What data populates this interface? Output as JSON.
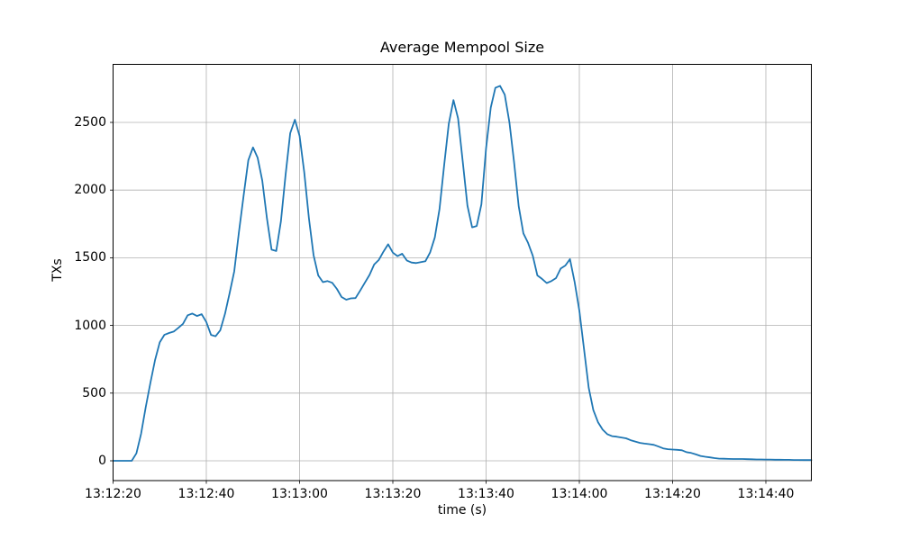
{
  "title": "Average Mempool Size",
  "chart_data": {
    "type": "line",
    "title": "Average Mempool Size",
    "xlabel": "time (s)",
    "ylabel": "TXs",
    "grid": true,
    "legend": "none",
    "line_color": "#1f77b4",
    "grid_color": "#b0b0b0",
    "spine_color": "#000000",
    "x_start_time": "13:12:20",
    "x_tick_interval_s": 20,
    "x_tick_labels": [
      "13:12:20",
      "13:12:40",
      "13:13:00",
      "13:13:20",
      "13:13:40",
      "13:14:00",
      "13:14:20",
      "13:14:40"
    ],
    "y_ticks": [
      0,
      500,
      1000,
      1500,
      2000,
      2500
    ],
    "ylim": [
      -146,
      2929
    ],
    "xlim_s": [
      0,
      149.8
    ],
    "x_unit": "seconds since 13:12:20",
    "series": [
      {
        "name": "average mempool size",
        "sample_interval_s": 1,
        "values": [
          0,
          0,
          0,
          0,
          0,
          55,
          200,
          395,
          575,
          745,
          875,
          930,
          944,
          955,
          982,
          1012,
          1075,
          1088,
          1070,
          1083,
          1025,
          930,
          920,
          965,
          1085,
          1240,
          1400,
          1690,
          1960,
          2220,
          2315,
          2240,
          2070,
          1790,
          1560,
          1550,
          1770,
          2115,
          2420,
          2520,
          2400,
          2130,
          1790,
          1520,
          1370,
          1320,
          1328,
          1315,
          1270,
          1210,
          1190,
          1200,
          1202,
          1258,
          1315,
          1373,
          1450,
          1485,
          1545,
          1600,
          1538,
          1512,
          1530,
          1480,
          1465,
          1461,
          1468,
          1475,
          1540,
          1650,
          1860,
          2180,
          2490,
          2665,
          2530,
          2210,
          1885,
          1725,
          1735,
          1895,
          2310,
          2610,
          2755,
          2770,
          2705,
          2500,
          2210,
          1880,
          1680,
          1610,
          1515,
          1370,
          1344,
          1313,
          1328,
          1350,
          1420,
          1443,
          1490,
          1320,
          1110,
          825,
          540,
          375,
          285,
          230,
          197,
          182,
          178,
          172,
          166,
          152,
          142,
          132,
          127,
          123,
          118,
          105,
          92,
          86,
          83,
          81,
          78,
          64,
          58,
          47,
          36,
          30,
          25,
          20,
          16,
          15,
          14,
          13,
          13,
          13,
          12,
          11,
          10,
          10,
          9,
          9,
          8,
          8,
          7,
          7,
          6,
          6,
          5,
          5
        ]
      }
    ]
  }
}
